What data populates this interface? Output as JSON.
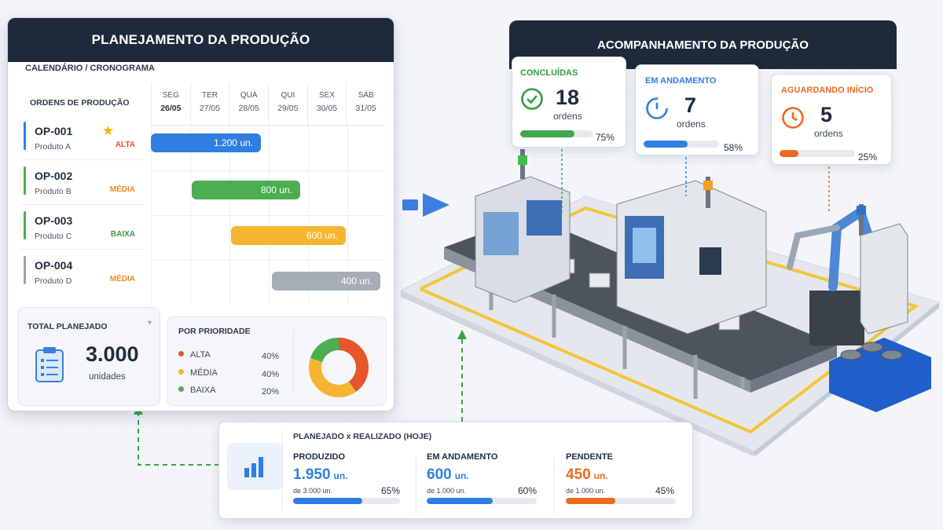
{
  "planning": {
    "title": "PLANEJAMENTO DA PRODUÇÃO",
    "calendar_label": "CALENDÁRIO / CRONOGRAMA",
    "orders_label": "ORDENS DE PRODUÇÃO",
    "days": [
      {
        "day": "SEG",
        "date": "26/05"
      },
      {
        "day": "TER",
        "date": "27/05"
      },
      {
        "day": "QUA",
        "date": "28/05"
      },
      {
        "day": "QUI",
        "date": "29/05"
      },
      {
        "day": "SEX",
        "date": "30/05"
      },
      {
        "day": "SÁB",
        "date": "31/05"
      }
    ],
    "orders": [
      {
        "code": "OP-001",
        "product": "Produto A",
        "priority": "ALTA",
        "color": "#2f7fe3",
        "priority_color": "#e8542b",
        "bar_label": "1.200 un.",
        "starred": true
      },
      {
        "code": "OP-002",
        "product": "Produto B",
        "priority": "MÉDIA",
        "color": "#4cae4f",
        "priority_color": "#f08a1c",
        "bar_label": "800 un.",
        "starred": false
      },
      {
        "code": "OP-003",
        "product": "Produto C",
        "priority": "BAIXA",
        "color": "#4cae4f",
        "priority_color": "#3a9a3d",
        "bar_label": "600 un.",
        "starred": false
      },
      {
        "code": "OP-004",
        "product": "Produto D",
        "priority": "MÉDIA",
        "color": "#9aa2ad",
        "priority_color": "#f08a1c",
        "bar_label": "400 un.",
        "starred": false
      }
    ],
    "bar_colors": [
      "#2f7fe3",
      "#4cae4f",
      "#f6b530",
      "#a7adb5"
    ],
    "total": {
      "label": "TOTAL PLANEJADO",
      "value": "3.000",
      "unit": "unidades"
    },
    "priority": {
      "label": "POR PRIORIDADE",
      "items": [
        {
          "name": "ALTA",
          "value": "40%",
          "share": 40,
          "color": "#e8542b"
        },
        {
          "name": "MÉDIA",
          "value": "40%",
          "share": 40,
          "color": "#f6b530"
        },
        {
          "name": "BAIXA",
          "value": "20%",
          "share": 20,
          "color": "#4cae4f"
        }
      ]
    }
  },
  "monitoring": {
    "title": "ACOMPANHAMENTO DA PRODUÇÃO",
    "kpis": [
      {
        "title": "CONCLUÍDAS",
        "value": "18",
        "unit": "ordens",
        "percent": "75%",
        "fraction": 0.75,
        "color": "#2e9e3f",
        "icon": "check-circle-icon"
      },
      {
        "title": "EM ANDAMENTO",
        "value": "7",
        "unit": "ordens",
        "percent": "58%",
        "fraction": 0.58,
        "color": "#2f7fe3",
        "icon": "progress-clock-icon"
      },
      {
        "title": "AGUARDANDO INÍCIO",
        "value": "5",
        "unit": "ordens",
        "percent": "25%",
        "fraction": 0.25,
        "color": "#ef6a1f",
        "icon": "clock-icon"
      }
    ]
  },
  "comparison": {
    "title": "PLANEJADO x REALIZADO (HOJE)",
    "icon": "bar-chart-icon",
    "metrics": [
      {
        "label": "PRODUZIDO",
        "value": "1.950",
        "unit": "un.",
        "of": "de 3.000 un.",
        "percent": "65%",
        "fraction": 0.65,
        "color": "#2f7fe3"
      },
      {
        "label": "EM ANDAMENTO",
        "value": "600",
        "unit": "un.",
        "of": "de 1.000 un.",
        "percent": "60%",
        "fraction": 0.6,
        "color": "#2f7fe3"
      },
      {
        "label": "PENDENTE",
        "value": "450",
        "unit": "un.",
        "of": "de 1.000 un.",
        "percent": "45%",
        "fraction": 0.45,
        "color": "#ef6a1f"
      }
    ]
  }
}
